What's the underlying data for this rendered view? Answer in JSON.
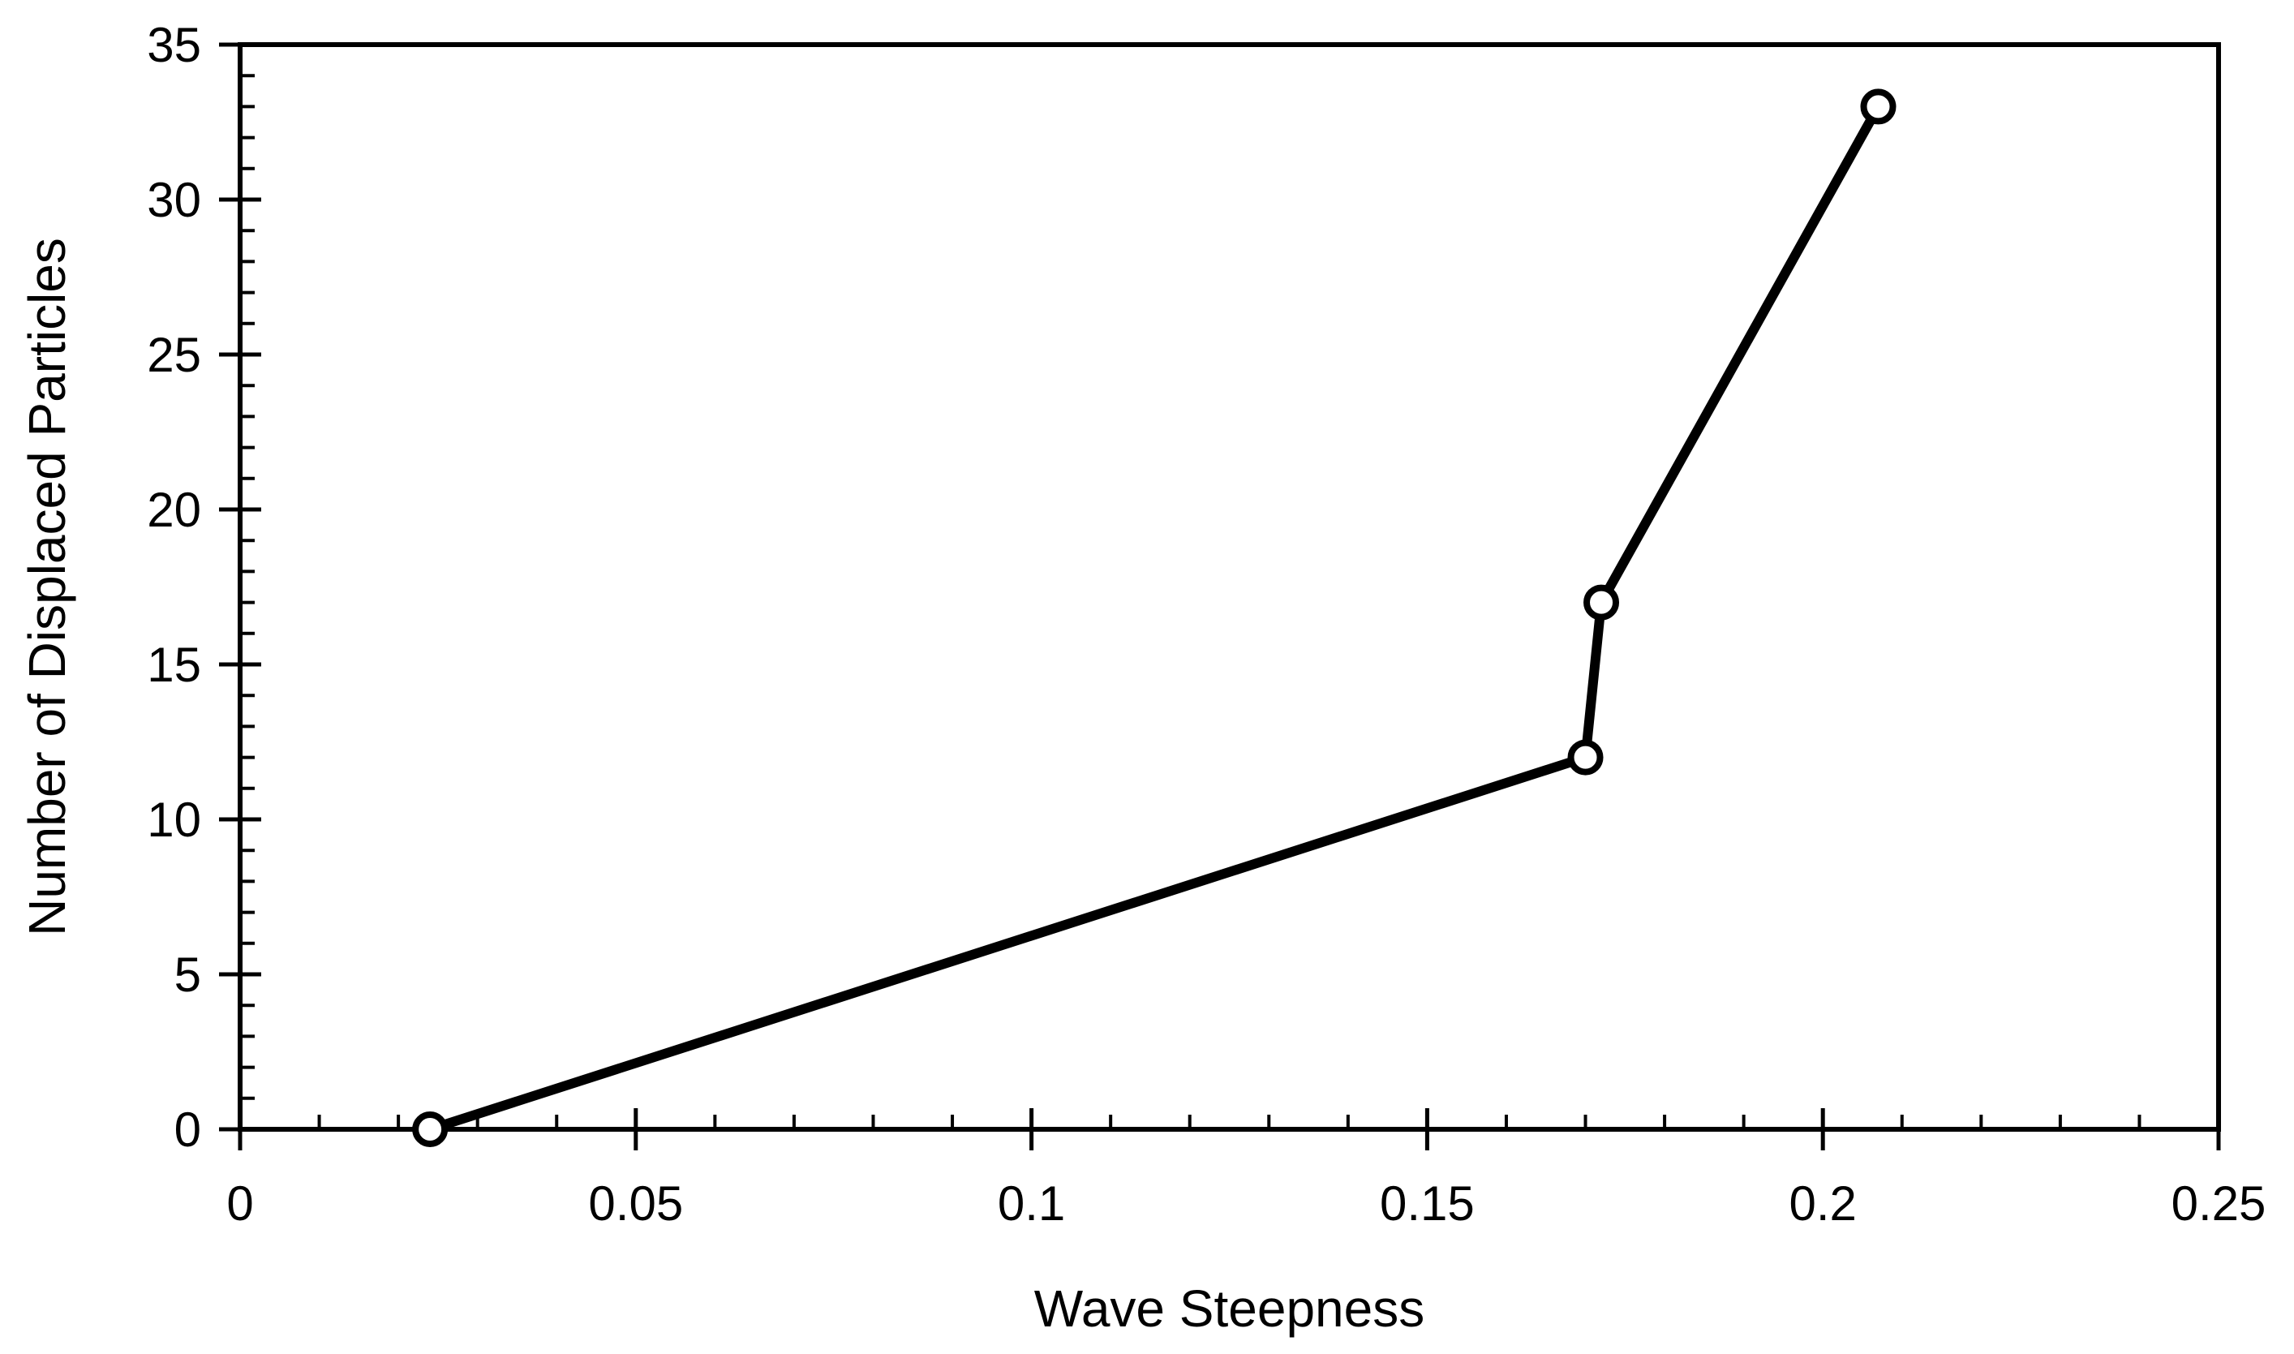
{
  "chart_data": {
    "type": "line",
    "title": "",
    "xlabel": "Wave Steepness",
    "ylabel": "Number of Displaced Particles",
    "xlim": [
      0,
      0.25
    ],
    "ylim": [
      0,
      35
    ],
    "x_ticks": [
      "0",
      "0.05",
      "0.1",
      "0.15",
      "0.2",
      "0.25"
    ],
    "y_ticks": [
      "0",
      "5",
      "10",
      "15",
      "20",
      "25",
      "30",
      "35"
    ],
    "x_minor_step": 0.01,
    "y_minor_step": 1,
    "grid": false,
    "legend": "none",
    "series": [
      {
        "x": [
          0.024,
          0.17,
          0.172,
          0.207
        ],
        "y": [
          0,
          12,
          17,
          33
        ],
        "color": "#000000",
        "marker": "open-circle"
      }
    ]
  }
}
